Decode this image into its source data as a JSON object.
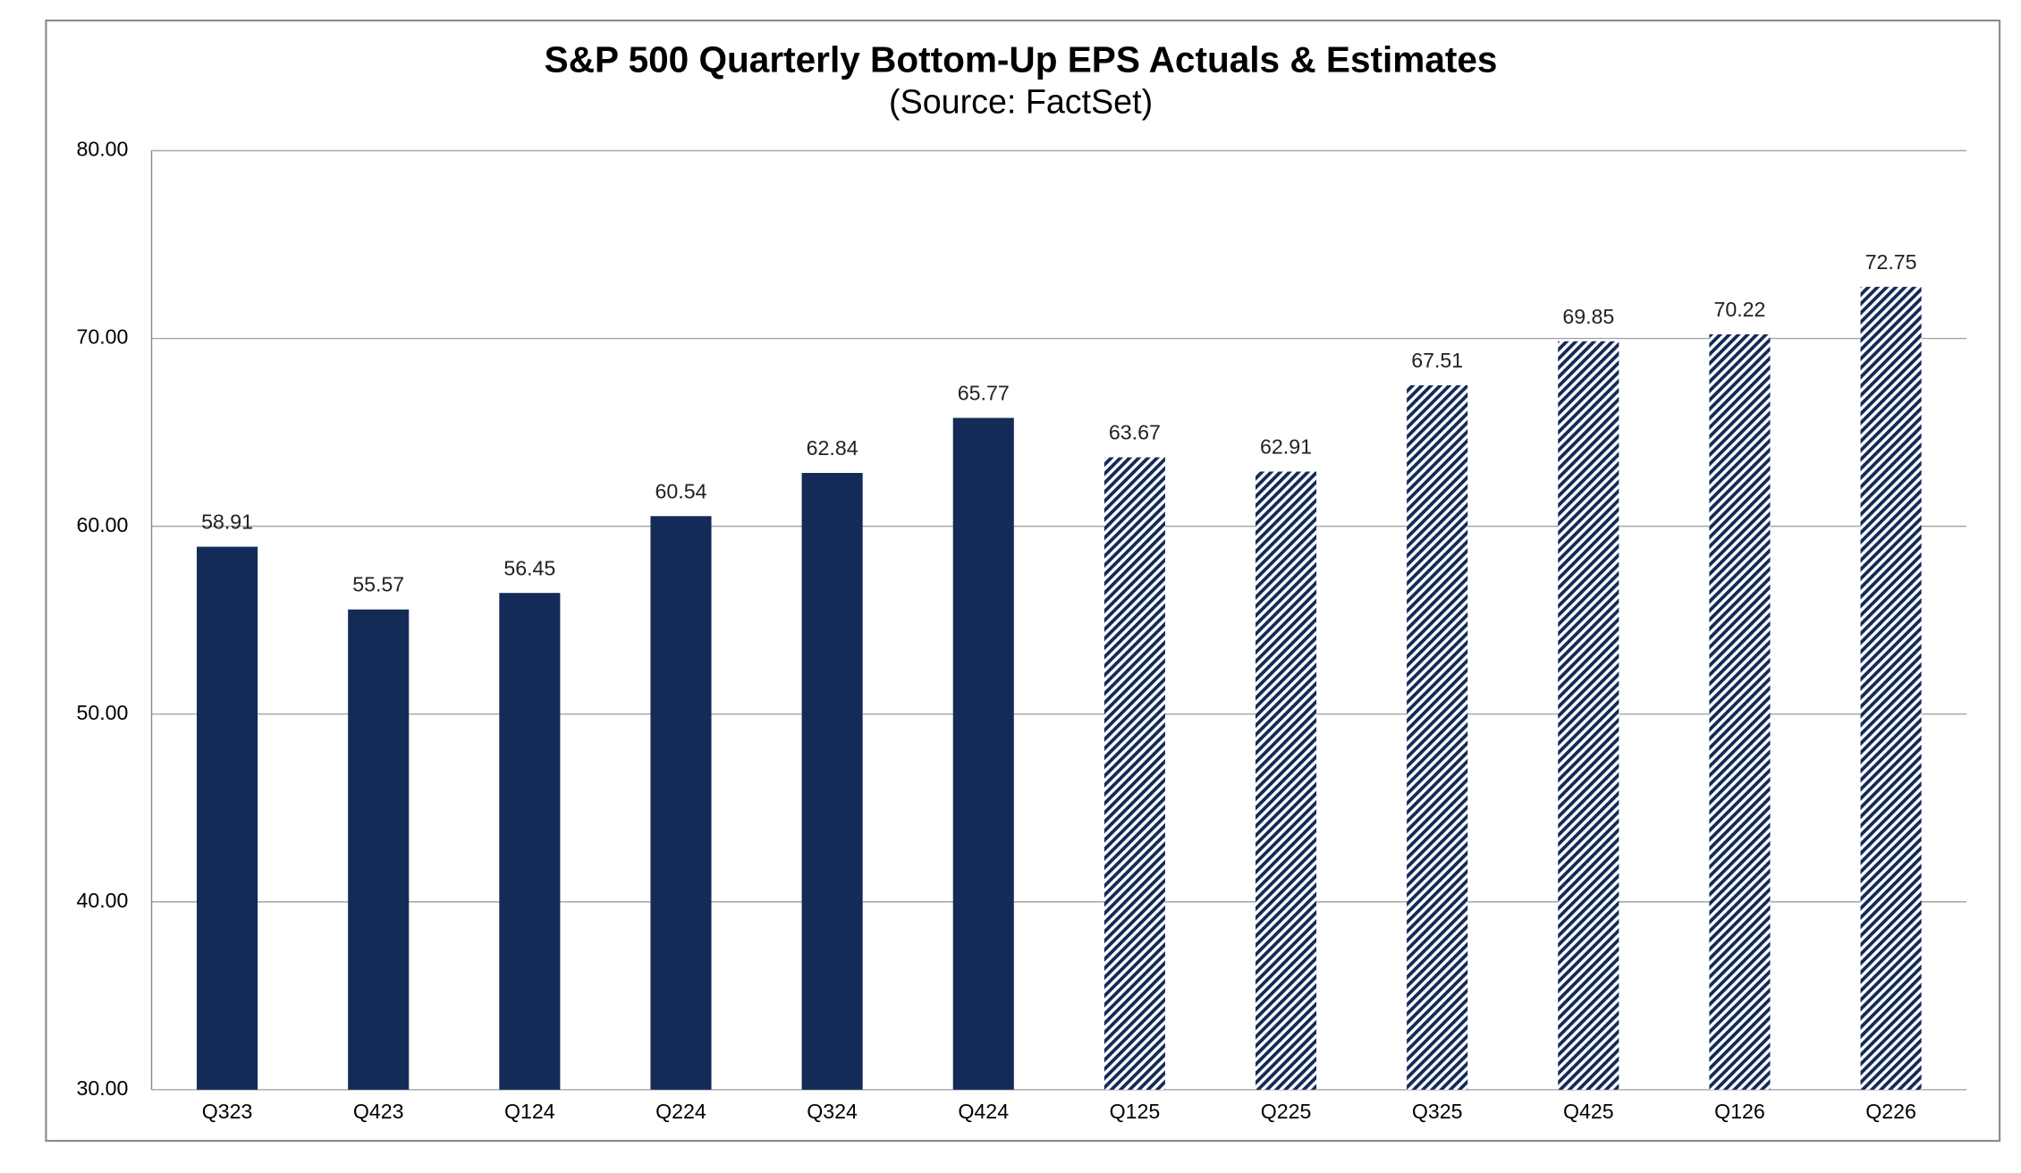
{
  "chart_data": {
    "type": "bar",
    "title": "S&P 500 Quarterly  Bottom-Up EPS Actuals & Estimates",
    "subtitle": "(Source: FactSet)",
    "categories": [
      "Q323",
      "Q423",
      "Q124",
      "Q224",
      "Q324",
      "Q424",
      "Q125",
      "Q225",
      "Q325",
      "Q425",
      "Q126",
      "Q226"
    ],
    "values": [
      58.91,
      55.57,
      56.45,
      60.54,
      62.84,
      65.77,
      63.67,
      62.91,
      67.51,
      69.85,
      70.22,
      72.75
    ],
    "bar_styles": [
      "solid",
      "solid",
      "solid",
      "solid",
      "solid",
      "solid",
      "hatched",
      "hatched",
      "hatched",
      "hatched",
      "hatched",
      "hatched"
    ],
    "color": "#142a57",
    "ylim": [
      30,
      80
    ],
    "yticks": [
      {
        "value": 30,
        "label": "30.00"
      },
      {
        "value": 40,
        "label": "40.00"
      },
      {
        "value": 50,
        "label": "50.00"
      },
      {
        "value": 60,
        "label": "60.00"
      },
      {
        "value": 70,
        "label": "70.00"
      },
      {
        "value": 80,
        "label": "80.00"
      }
    ],
    "grid": true
  }
}
